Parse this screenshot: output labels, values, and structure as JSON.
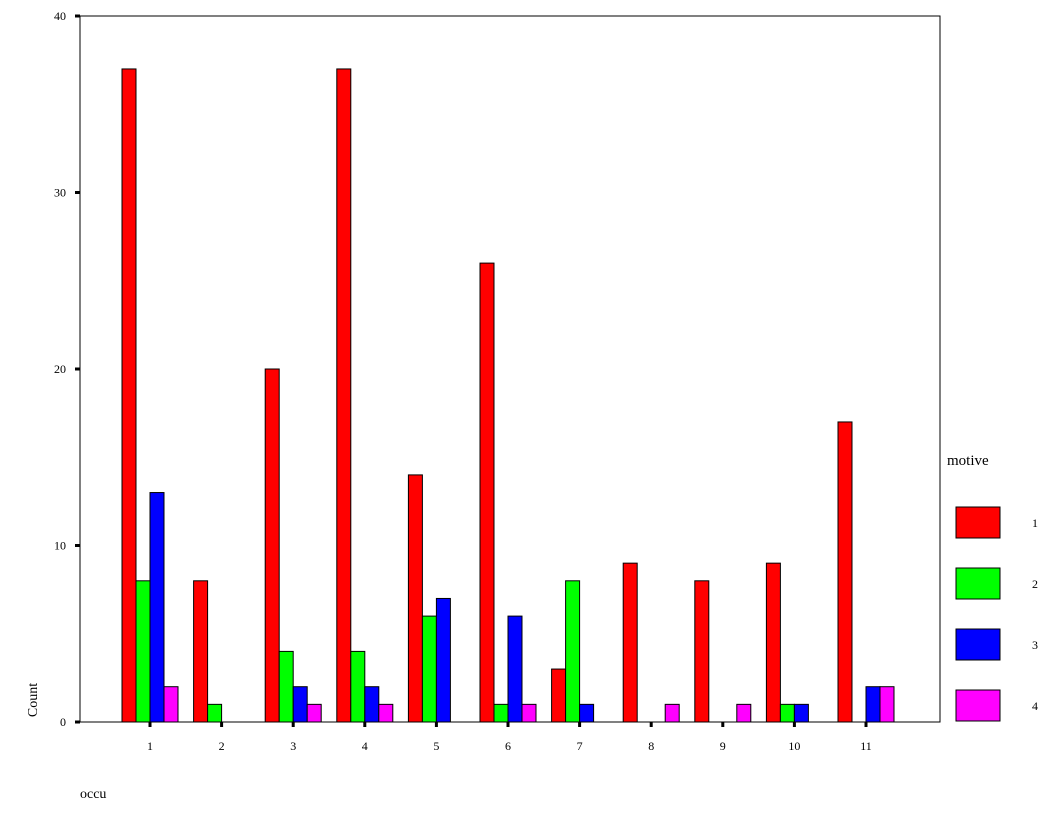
{
  "chart_data": {
    "type": "bar",
    "title": "",
    "xlabel": "occu",
    "ylabel": "Count",
    "ylim": [
      0,
      40
    ],
    "y_ticks": [
      0,
      10,
      20,
      30,
      40
    ],
    "grid": false,
    "legend": {
      "title": "motive",
      "placement": "right"
    },
    "categories": [
      "1",
      "2",
      "3",
      "4",
      "5",
      "6",
      "7",
      "8",
      "9",
      "10",
      "11"
    ],
    "series": [
      {
        "name": "1",
        "color": "#ff0000",
        "values": [
          37,
          8,
          20,
          37,
          14,
          26,
          3,
          9,
          8,
          9,
          17
        ]
      },
      {
        "name": "2",
        "color": "#00ff00",
        "values": [
          8,
          1,
          4,
          4,
          6,
          1,
          8,
          0,
          0,
          1,
          0
        ]
      },
      {
        "name": "3",
        "color": "#0000ff",
        "values": [
          13,
          0,
          2,
          2,
          7,
          6,
          1,
          0,
          0,
          1,
          2
        ]
      },
      {
        "name": "4",
        "color": "#ff00ff",
        "values": [
          2,
          0,
          1,
          1,
          0,
          1,
          0,
          1,
          1,
          0,
          2
        ]
      }
    ]
  }
}
